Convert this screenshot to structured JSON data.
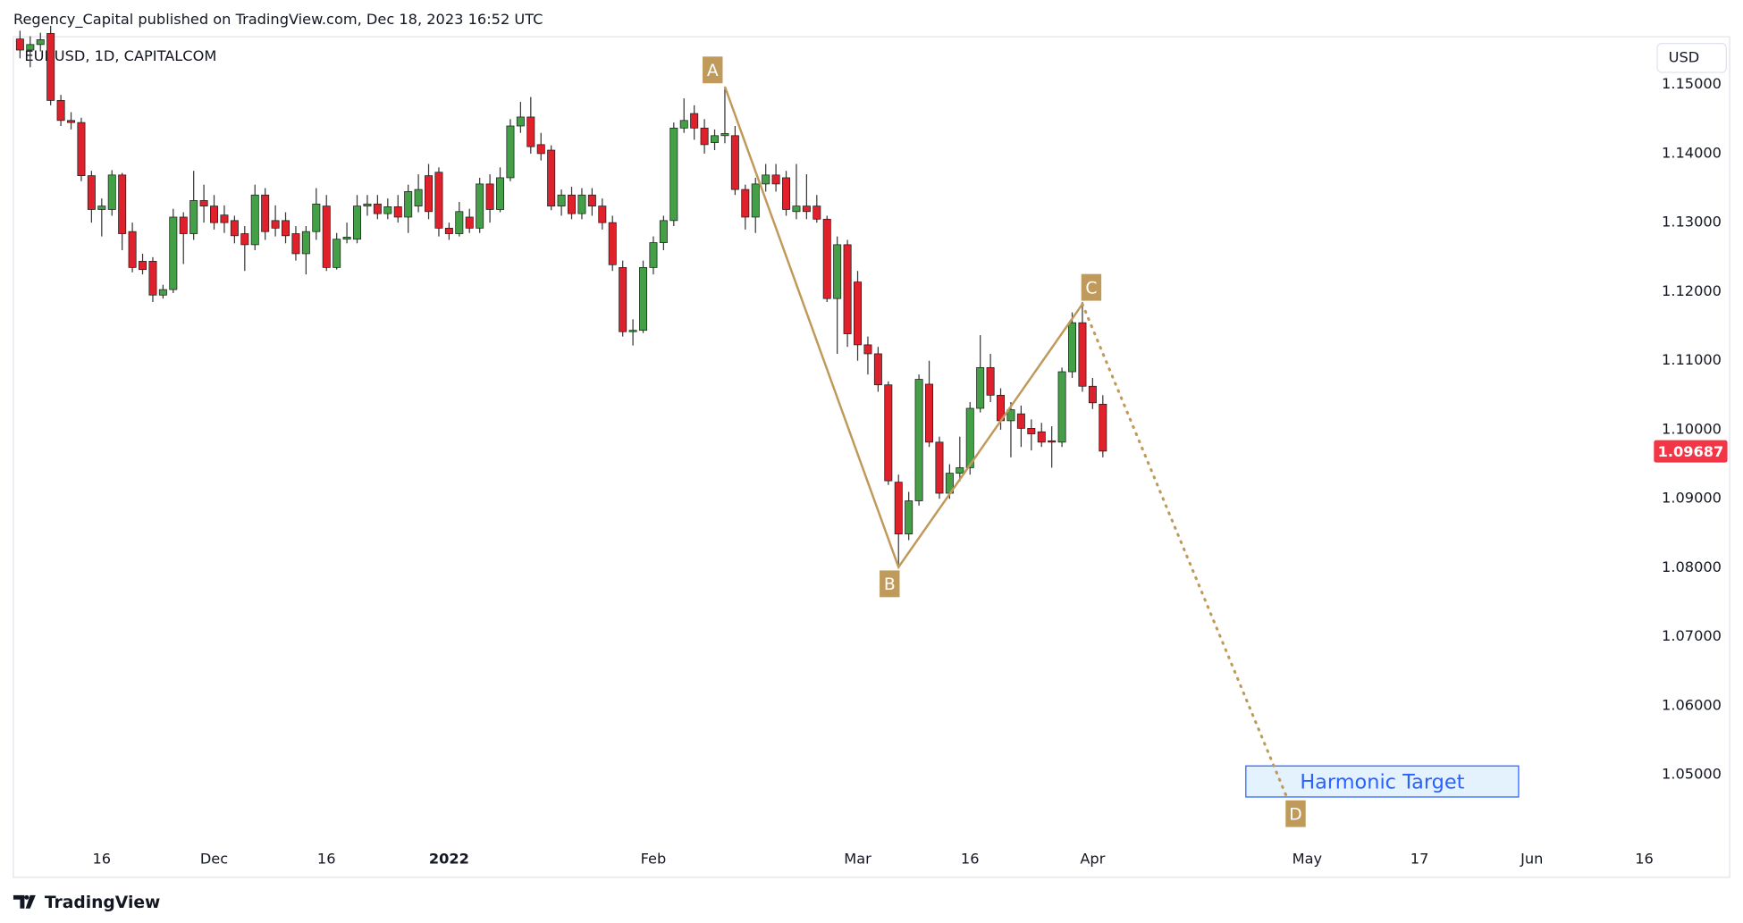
{
  "header": {
    "attribution": "Regency_Capital published on TradingView.com, Dec 18, 2023 16:52 UTC"
  },
  "footer": {
    "brand": "TradingView"
  },
  "chart_data": {
    "type": "candlestick",
    "title": "EURUSD, 1D, CAPITALCOM",
    "currency": "USD",
    "open": [
      1.1566,
      1.155,
      1.1558,
      1.1574,
      1.1477,
      1.1448,
      1.1445,
      1.1368,
      1.1319,
      1.1319,
      1.1369,
      1.1287,
      1.1244,
      1.1244,
      1.1195,
      1.1203,
      1.1308,
      1.1284,
      1.1332,
      1.1324,
      1.1311,
      1.1303,
      1.1284,
      1.1268,
      1.134,
      1.1303,
      1.1303,
      1.1284,
      1.1255,
      1.1287,
      1.1324,
      1.1235,
      1.1276,
      1.1276,
      1.1324,
      1.1327,
      1.1313,
      1.1323,
      1.1308,
      1.1324,
      1.1368,
      1.1373,
      1.1292,
      1.1284,
      1.1308,
      1.1292,
      1.1356,
      1.1319,
      1.1365,
      1.144,
      1.1453,
      1.1413,
      1.1405,
      1.1324,
      1.134,
      1.1313,
      1.134,
      1.1324,
      1.13,
      1.1235,
      1.1142,
      1.1144,
      1.1235,
      1.1271,
      1.1303,
      1.1437,
      1.1458,
      1.1437,
      1.1416,
      1.1426,
      1.1426,
      1.1348,
      1.1308,
      1.1356,
      1.1369,
      1.1365,
      1.1316,
      1.1324,
      1.1324,
      1.1305,
      1.119,
      1.1268,
      1.1214,
      1.1123,
      1.111,
      1.1065,
      1.0924,
      1.0849,
      1.0897,
      1.1066,
      1.0982,
      1.0908,
      1.0937,
      1.0945,
      1.1031,
      1.109,
      1.105,
      1.1013,
      1.1023,
      1.1002,
      1.0997,
      1.0984,
      1.0982,
      1.1084,
      1.1155,
      1.1063,
      1.1037
    ],
    "high": [
      1.1578,
      1.157,
      1.1575,
      1.1585,
      1.1485,
      1.146,
      1.1452,
      1.1375,
      1.1335,
      1.1376,
      1.1372,
      1.13,
      1.1255,
      1.125,
      1.121,
      1.132,
      1.1315,
      1.1375,
      1.1355,
      1.134,
      1.1325,
      1.131,
      1.1295,
      1.1355,
      1.135,
      1.1325,
      1.1315,
      1.1295,
      1.1295,
      1.135,
      1.134,
      1.1285,
      1.13,
      1.134,
      1.134,
      1.134,
      1.1335,
      1.134,
      1.1355,
      1.137,
      1.1385,
      1.138,
      1.13,
      1.133,
      1.132,
      1.1365,
      1.137,
      1.138,
      1.145,
      1.1475,
      1.1482,
      1.143,
      1.1412,
      1.1348,
      1.1352,
      1.135,
      1.135,
      1.1335,
      1.131,
      1.1245,
      1.116,
      1.1245,
      1.128,
      1.131,
      1.1445,
      1.148,
      1.147,
      1.145,
      1.1435,
      1.1497,
      1.144,
      1.1355,
      1.1365,
      1.1385,
      1.1385,
      1.1375,
      1.1385,
      1.137,
      1.134,
      1.131,
      1.128,
      1.1275,
      1.123,
      1.1135,
      1.112,
      1.107,
      1.0935,
      1.091,
      1.108,
      1.11,
      1.099,
      1.095,
      1.099,
      1.104,
      1.1137,
      1.111,
      1.106,
      1.104,
      1.1035,
      1.1015,
      1.101,
      1.1005,
      1.109,
      1.117,
      1.1185,
      1.1075,
      1.105
    ],
    "low": [
      1.1538,
      1.1525,
      1.1548,
      1.147,
      1.144,
      1.1435,
      1.136,
      1.13,
      1.128,
      1.131,
      1.126,
      1.1228,
      1.1225,
      1.1185,
      1.119,
      1.1198,
      1.124,
      1.1275,
      1.13,
      1.129,
      1.1285,
      1.127,
      1.123,
      1.126,
      1.1275,
      1.128,
      1.127,
      1.1245,
      1.1225,
      1.1275,
      1.123,
      1.1232,
      1.127,
      1.127,
      1.131,
      1.1305,
      1.1305,
      1.13,
      1.1285,
      1.1315,
      1.1305,
      1.128,
      1.1275,
      1.128,
      1.1285,
      1.1285,
      1.13,
      1.1315,
      1.136,
      1.143,
      1.14,
      1.139,
      1.1318,
      1.131,
      1.1305,
      1.1305,
      1.131,
      1.129,
      1.123,
      1.1135,
      1.1122,
      1.114,
      1.1225,
      1.126,
      1.1295,
      1.143,
      1.142,
      1.14,
      1.1405,
      1.1415,
      1.134,
      1.129,
      1.1285,
      1.1345,
      1.1345,
      1.131,
      1.1305,
      1.1305,
      1.13,
      1.1185,
      1.111,
      1.112,
      1.11,
      1.108,
      1.1055,
      1.092,
      1.0801,
      1.084,
      1.089,
      1.0975,
      1.09,
      1.09,
      1.0925,
      1.0935,
      1.1025,
      1.104,
      1.1,
      1.096,
      1.0975,
      1.097,
      1.0975,
      1.0945,
      1.0975,
      1.1075,
      1.1055,
      1.103,
      1.096
    ],
    "close": [
      1.155,
      1.1558,
      1.1565,
      1.1477,
      1.1448,
      1.1445,
      1.1368,
      1.1319,
      1.1324,
      1.1369,
      1.1284,
      1.1235,
      1.1232,
      1.1195,
      1.1203,
      1.1308,
      1.1284,
      1.1332,
      1.1324,
      1.13,
      1.13,
      1.1281,
      1.1268,
      1.134,
      1.1287,
      1.1292,
      1.1281,
      1.1255,
      1.1287,
      1.1327,
      1.1235,
      1.1276,
      1.1279,
      1.1324,
      1.1327,
      1.1313,
      1.1323,
      1.1308,
      1.1345,
      1.1348,
      1.1316,
      1.1292,
      1.1284,
      1.1316,
      1.1292,
      1.1356,
      1.1319,
      1.1365,
      1.144,
      1.1453,
      1.141,
      1.14,
      1.1324,
      1.134,
      1.1313,
      1.134,
      1.1324,
      1.13,
      1.1239,
      1.1142,
      1.1144,
      1.1235,
      1.1271,
      1.1303,
      1.1437,
      1.1448,
      1.1437,
      1.1413,
      1.1426,
      1.1429,
      1.1348,
      1.1308,
      1.1356,
      1.1369,
      1.1356,
      1.1319,
      1.1324,
      1.1316,
      1.1305,
      1.119,
      1.1268,
      1.1139,
      1.1123,
      1.111,
      1.1065,
      1.0926,
      1.0849,
      1.0897,
      1.1073,
      1.0982,
      1.0908,
      1.0937,
      1.0945,
      1.1031,
      1.109,
      1.105,
      1.1013,
      1.1029,
      1.1002,
      1.0994,
      1.0982,
      1.0982,
      1.1084,
      1.1155,
      1.1063,
      1.1039,
      1.0969
    ],
    "up_color": "#43a047",
    "down_color": "#e0202a",
    "xlim": [
      -0.65,
      159.4
    ],
    "xticks": [
      {
        "value": 8,
        "label": "16"
      },
      {
        "value": 19,
        "label": "Dec"
      },
      {
        "value": 30,
        "label": "16"
      },
      {
        "value": 42,
        "label": "2022"
      },
      {
        "value": 62,
        "label": "Feb"
      },
      {
        "value": 82,
        "label": "Mar"
      },
      {
        "value": 93,
        "label": "16"
      },
      {
        "value": 105,
        "label": "Apr"
      },
      {
        "value": 126,
        "label": "May"
      },
      {
        "value": 137,
        "label": "17"
      },
      {
        "value": 148,
        "label": "Jun"
      },
      {
        "value": 159,
        "label": "16"
      }
    ],
    "ylim": [
      1.04,
      1.1566
    ],
    "yticks": [
      {
        "value": 1.05,
        "label": "1.05000"
      },
      {
        "value": 1.06,
        "label": "1.06000"
      },
      {
        "value": 1.07,
        "label": "1.07000"
      },
      {
        "value": 1.08,
        "label": "1.08000"
      },
      {
        "value": 1.09,
        "label": "1.09000"
      },
      {
        "value": 1.1,
        "label": "1.10000"
      },
      {
        "value": 1.11,
        "label": "1.11000"
      },
      {
        "value": 1.12,
        "label": "1.12000"
      },
      {
        "value": 1.13,
        "label": "1.13000"
      },
      {
        "value": 1.14,
        "label": "1.14000"
      },
      {
        "value": 1.15,
        "label": "1.15000"
      }
    ],
    "grid": false,
    "current_price": 1.09687,
    "current_price_color": "#f23645",
    "pattern": {
      "color": "#c09a5b",
      "points": [
        {
          "label": "A",
          "x": 69,
          "y": 1.1497
        },
        {
          "label": "B",
          "x": 86,
          "y": 1.0801
        },
        {
          "label": "C",
          "x": 104,
          "y": 1.1182
        },
        {
          "label": "D",
          "x": 124,
          "y": 1.0468
        }
      ]
    },
    "target": {
      "label": "Harmonic Target",
      "x": [
        120,
        146.7
      ],
      "y": [
        1.0468,
        1.0513
      ]
    }
  }
}
